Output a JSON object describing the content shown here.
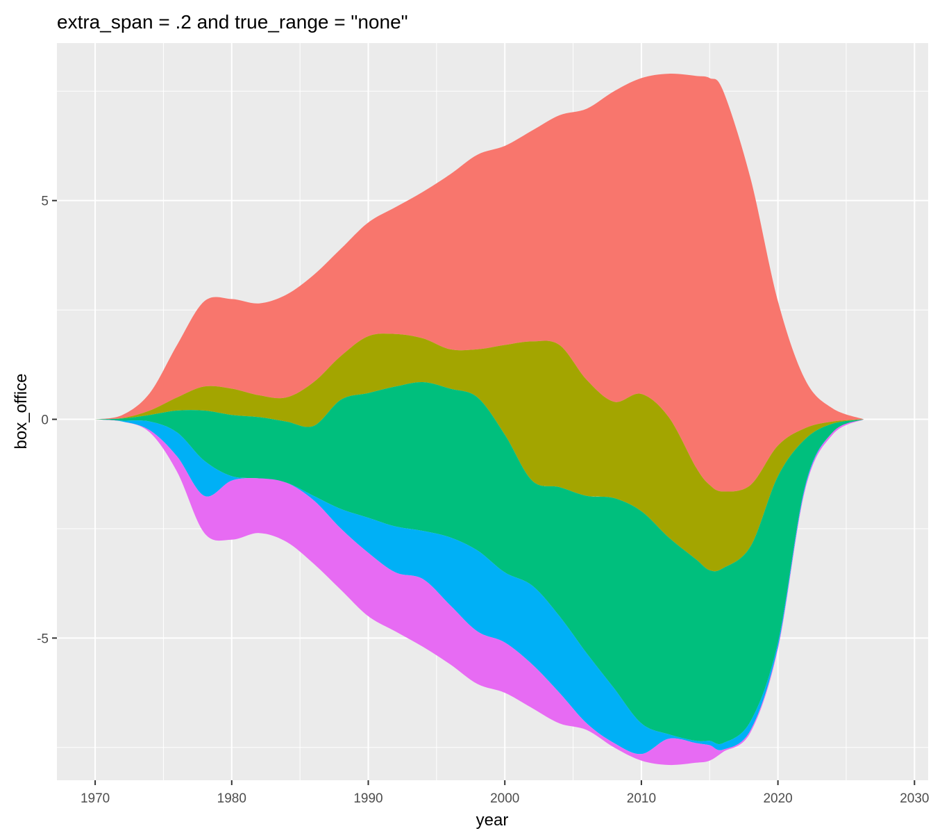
{
  "chart_data": {
    "type": "area",
    "subtype": "streamgraph",
    "title": "extra_span = .2 and true_range = \"none\"",
    "xlabel": "year",
    "ylabel": "box_office",
    "xlim": [
      1967.2,
      2031.0
    ],
    "ylim": [
      -8.25,
      8.6
    ],
    "x_ticks": [
      1970,
      1980,
      1990,
      2000,
      2010,
      2020,
      2030
    ],
    "x_tick_labels": [
      "1970",
      "1980",
      "1990",
      "2000",
      "2010",
      "2020",
      "2030"
    ],
    "y_ticks": [
      -5,
      0,
      5
    ],
    "y_tick_labels": [
      "-5",
      "0",
      "5"
    ],
    "grid": true,
    "legend": "none",
    "colors": [
      "#F8766D",
      "#A3A500",
      "#00BF7D",
      "#00B0F6",
      "#E76BF3"
    ],
    "x": [
      1970,
      1972,
      1974,
      1976,
      1978,
      1980,
      1982,
      1984,
      1986,
      1988,
      1990,
      1992,
      1994,
      1996,
      1998,
      2000,
      2002,
      2004,
      2006,
      2008,
      2010,
      2012,
      2014,
      2015,
      2016,
      2018,
      2020,
      2022,
      2024,
      2026.3
    ],
    "boundaries": [
      [
        0,
        0.1,
        0.6,
        1.7,
        2.7,
        2.75,
        2.65,
        2.85,
        3.3,
        3.9,
        4.5,
        4.85,
        5.2,
        5.6,
        6.05,
        6.25,
        6.6,
        6.95,
        7.1,
        7.5,
        7.8,
        7.9,
        7.85,
        7.8,
        7.5,
        5.5,
        2.7,
        0.9,
        0.25,
        0
      ],
      [
        0,
        0.03,
        0.2,
        0.5,
        0.75,
        0.7,
        0.55,
        0.5,
        0.85,
        1.45,
        1.9,
        1.95,
        1.85,
        1.6,
        1.6,
        1.7,
        1.78,
        1.7,
        0.9,
        0.4,
        0.58,
        0.05,
        -1.1,
        -1.5,
        -1.65,
        -1.5,
        -0.6,
        -0.2,
        -0.05,
        0
      ],
      [
        0,
        0.02,
        0.1,
        0.2,
        0.2,
        0.1,
        0.05,
        -0.05,
        -0.15,
        0.45,
        0.6,
        0.75,
        0.85,
        0.7,
        0.5,
        -0.35,
        -1.4,
        -1.55,
        -1.75,
        -1.8,
        -2.1,
        -2.7,
        -3.2,
        -3.45,
        -3.4,
        -2.9,
        -1.3,
        -0.45,
        -0.1,
        0
      ],
      [
        0,
        -0.03,
        -0.05,
        -0.3,
        -0.95,
        -1.3,
        -1.35,
        -1.45,
        -1.75,
        -2.05,
        -2.25,
        -2.45,
        -2.55,
        -2.7,
        -3.0,
        -3.5,
        -3.8,
        -4.5,
        -5.35,
        -6.15,
        -6.95,
        -7.2,
        -7.35,
        -7.35,
        -7.4,
        -6.9,
        -5.1,
        -1.5,
        -0.3,
        0
      ],
      [
        0,
        -0.05,
        -0.25,
        -0.85,
        -1.75,
        -1.4,
        -1.35,
        -1.45,
        -1.85,
        -2.5,
        -3.05,
        -3.5,
        -3.65,
        -4.25,
        -4.85,
        -5.1,
        -5.6,
        -6.25,
        -6.95,
        -7.4,
        -7.65,
        -7.3,
        -7.4,
        -7.45,
        -7.55,
        -7.1,
        -5.2,
        -1.55,
        -0.3,
        0
      ],
      [
        0,
        -0.05,
        -0.3,
        -1.2,
        -2.6,
        -2.75,
        -2.6,
        -2.8,
        -3.3,
        -3.9,
        -4.5,
        -4.85,
        -5.2,
        -5.6,
        -6.05,
        -6.25,
        -6.6,
        -6.95,
        -7.1,
        -7.5,
        -7.8,
        -7.9,
        -7.85,
        -7.8,
        -7.6,
        -7.15,
        -5.25,
        -1.6,
        -0.35,
        0
      ]
    ],
    "boundaries_note": "6 boundary curves; layer i (colors[i]) spans boundaries[i] to boundaries[i+1]"
  }
}
